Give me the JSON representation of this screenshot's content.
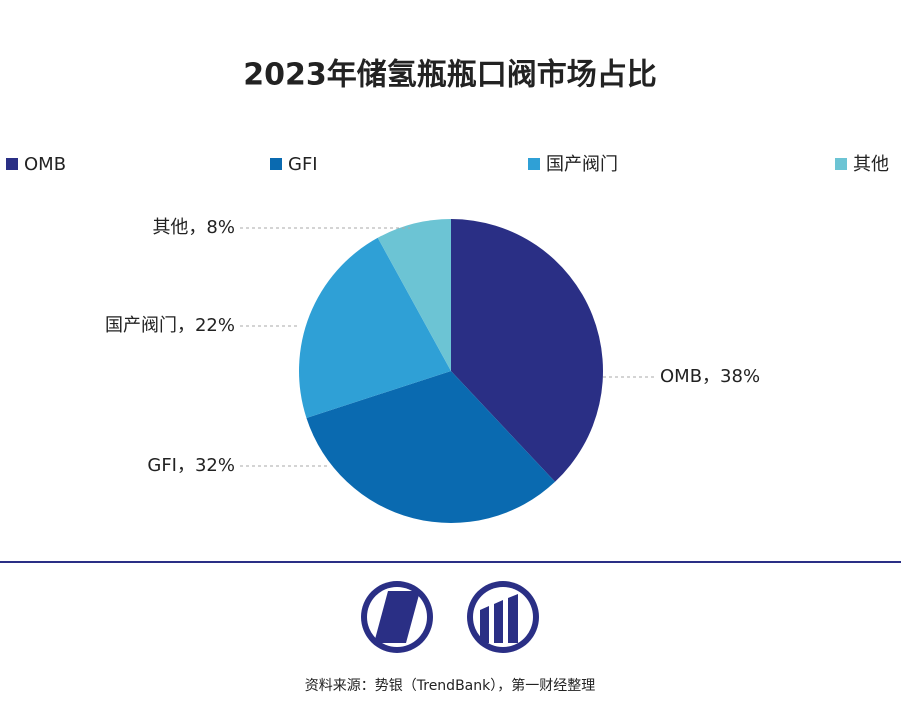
{
  "chart_data": {
    "type": "pie",
    "title": "2023年储氢瓶瓶口阀市场占比",
    "categories": [
      "OMB",
      "GFI",
      "国产阀门",
      "其他"
    ],
    "values": [
      38,
      32,
      22,
      8
    ],
    "value_labels": [
      "OMB，38%",
      "GFI，32%",
      "国产阀门，22%",
      "其他，8%"
    ],
    "colors": [
      "#2a2f85",
      "#0a6ab0",
      "#2fa0d6",
      "#6cc4d4"
    ],
    "legend": "top"
  },
  "source": "资料来源：势银（TrendBank），第一财经整理"
}
